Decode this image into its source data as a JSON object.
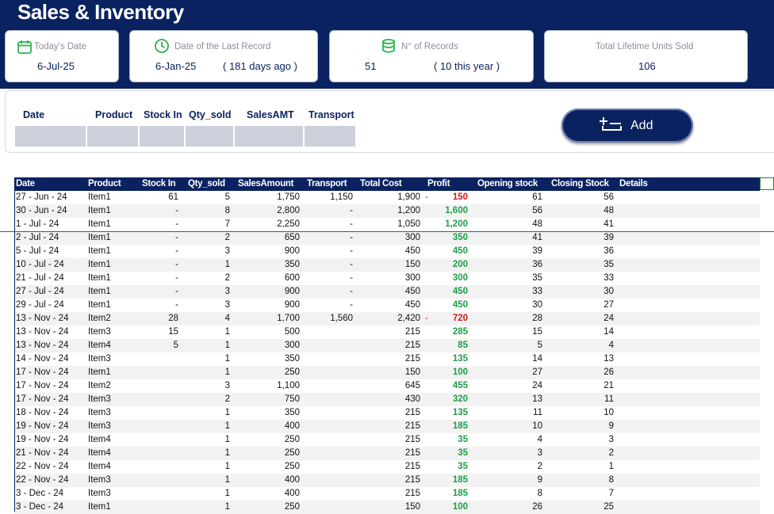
{
  "app": {
    "title": "Sales & Inventory"
  },
  "cards": {
    "today": {
      "label": "Today's Date",
      "value": "6-Jul-25"
    },
    "last": {
      "label": "Date of the Last Record",
      "value": "6-Jan-25",
      "sub": "( 181 days ago )"
    },
    "records": {
      "label": "N° of  Records",
      "value": "51",
      "sub": "( 10 this year )"
    },
    "units": {
      "label": "Total Lifetime Units Sold",
      "value": "106"
    }
  },
  "form": {
    "headers": [
      "Date",
      "Product",
      "Stock In",
      "Qty_sold",
      "SalesAMT",
      "Transport"
    ],
    "add_label": "Add"
  },
  "table": {
    "headers": [
      "Date",
      "Product",
      "Stock In",
      "Qty_sold",
      "SalesAmount",
      "Transport",
      "Total Cost",
      "Profit",
      "Opening stock",
      "Closing Stock",
      "Details"
    ],
    "rows": [
      {
        "date": "27 - Jun - 24",
        "product": "Item1",
        "stock_in": "61",
        "qty": "5",
        "sales": "1,750",
        "transport": "1,150",
        "cost": "1,900",
        "neg": "-",
        "profit": "150",
        "profit_sign": "neg",
        "open": "61",
        "close": "56"
      },
      {
        "date": "30 - Jun - 24",
        "product": "Item1",
        "stock_in": "-",
        "qty": "8",
        "sales": "2,800",
        "transport": "-",
        "cost": "1,200",
        "neg": "",
        "profit": "1,600",
        "profit_sign": "pos",
        "open": "56",
        "close": "48"
      },
      {
        "date": "1 - Jul - 24",
        "product": "Item1",
        "stock_in": "-",
        "qty": "7",
        "sales": "2,250",
        "transport": "-",
        "cost": "1,050",
        "neg": "",
        "profit": "1,200",
        "profit_sign": "pos",
        "open": "48",
        "close": "41"
      },
      {
        "date": "2 - Jul - 24",
        "product": "Item1",
        "stock_in": "-",
        "qty": "2",
        "sales": "650",
        "transport": "-",
        "cost": "300",
        "neg": "",
        "profit": "350",
        "profit_sign": "pos",
        "open": "41",
        "close": "39"
      },
      {
        "date": "5 - Jul - 24",
        "product": "Item1",
        "stock_in": "-",
        "qty": "3",
        "sales": "900",
        "transport": "-",
        "cost": "450",
        "neg": "",
        "profit": "450",
        "profit_sign": "pos",
        "open": "39",
        "close": "36"
      },
      {
        "date": "10 - Jul - 24",
        "product": "Item1",
        "stock_in": "-",
        "qty": "1",
        "sales": "350",
        "transport": "-",
        "cost": "150",
        "neg": "",
        "profit": "200",
        "profit_sign": "pos",
        "open": "36",
        "close": "35"
      },
      {
        "date": "21 - Jul - 24",
        "product": "Item1",
        "stock_in": "-",
        "qty": "2",
        "sales": "600",
        "transport": "-",
        "cost": "300",
        "neg": "",
        "profit": "300",
        "profit_sign": "pos",
        "open": "35",
        "close": "33"
      },
      {
        "date": "27 - Jul - 24",
        "product": "Item1",
        "stock_in": "-",
        "qty": "3",
        "sales": "900",
        "transport": "-",
        "cost": "450",
        "neg": "",
        "profit": "450",
        "profit_sign": "pos",
        "open": "33",
        "close": "30"
      },
      {
        "date": "29 - Jul - 24",
        "product": "Item1",
        "stock_in": "-",
        "qty": "3",
        "sales": "900",
        "transport": "-",
        "cost": "450",
        "neg": "",
        "profit": "450",
        "profit_sign": "pos",
        "open": "30",
        "close": "27"
      },
      {
        "date": "13 - Nov - 24",
        "product": "Item2",
        "stock_in": "28",
        "qty": "4",
        "sales": "1,700",
        "transport": "1,560",
        "cost": "2,420",
        "neg": "-",
        "profit": "720",
        "profit_sign": "neg",
        "open": "28",
        "close": "24"
      },
      {
        "date": "13 - Nov - 24",
        "product": "Item3",
        "stock_in": "15",
        "qty": "1",
        "sales": "500",
        "transport": "",
        "cost": "215",
        "neg": "",
        "profit": "285",
        "profit_sign": "pos",
        "open": "15",
        "close": "14"
      },
      {
        "date": "13 - Nov - 24",
        "product": "Item4",
        "stock_in": "5",
        "qty": "1",
        "sales": "300",
        "transport": "",
        "cost": "215",
        "neg": "",
        "profit": "85",
        "profit_sign": "pos",
        "open": "5",
        "close": "4"
      },
      {
        "date": "14 - Nov - 24",
        "product": "Item3",
        "stock_in": "",
        "qty": "1",
        "sales": "350",
        "transport": "",
        "cost": "215",
        "neg": "",
        "profit": "135",
        "profit_sign": "pos",
        "open": "14",
        "close": "13"
      },
      {
        "date": "17 - Nov - 24",
        "product": "Item1",
        "stock_in": "",
        "qty": "1",
        "sales": "250",
        "transport": "",
        "cost": "150",
        "neg": "",
        "profit": "100",
        "profit_sign": "pos",
        "open": "27",
        "close": "26"
      },
      {
        "date": "17 - Nov - 24",
        "product": "Item2",
        "stock_in": "",
        "qty": "3",
        "sales": "1,100",
        "transport": "",
        "cost": "645",
        "neg": "",
        "profit": "455",
        "profit_sign": "pos",
        "open": "24",
        "close": "21"
      },
      {
        "date": "17 - Nov - 24",
        "product": "Item3",
        "stock_in": "",
        "qty": "2",
        "sales": "750",
        "transport": "",
        "cost": "430",
        "neg": "",
        "profit": "320",
        "profit_sign": "pos",
        "open": "13",
        "close": "11"
      },
      {
        "date": "18 - Nov - 24",
        "product": "Item3",
        "stock_in": "",
        "qty": "1",
        "sales": "350",
        "transport": "",
        "cost": "215",
        "neg": "",
        "profit": "135",
        "profit_sign": "pos",
        "open": "11",
        "close": "10"
      },
      {
        "date": "19 - Nov - 24",
        "product": "Item3",
        "stock_in": "",
        "qty": "1",
        "sales": "400",
        "transport": "",
        "cost": "215",
        "neg": "",
        "profit": "185",
        "profit_sign": "pos",
        "open": "10",
        "close": "9"
      },
      {
        "date": "19 - Nov - 24",
        "product": "Item4",
        "stock_in": "",
        "qty": "1",
        "sales": "250",
        "transport": "",
        "cost": "215",
        "neg": "",
        "profit": "35",
        "profit_sign": "pos",
        "open": "4",
        "close": "3"
      },
      {
        "date": "21 - Nov - 24",
        "product": "Item4",
        "stock_in": "",
        "qty": "1",
        "sales": "250",
        "transport": "",
        "cost": "215",
        "neg": "",
        "profit": "35",
        "profit_sign": "pos",
        "open": "3",
        "close": "2"
      },
      {
        "date": "22 - Nov - 24",
        "product": "Item4",
        "stock_in": "",
        "qty": "1",
        "sales": "250",
        "transport": "",
        "cost": "215",
        "neg": "",
        "profit": "35",
        "profit_sign": "pos",
        "open": "2",
        "close": "1"
      },
      {
        "date": "22 - Nov - 24",
        "product": "Item3",
        "stock_in": "",
        "qty": "1",
        "sales": "400",
        "transport": "",
        "cost": "215",
        "neg": "",
        "profit": "185",
        "profit_sign": "pos",
        "open": "9",
        "close": "8"
      },
      {
        "date": "3 - Dec - 24",
        "product": "Item3",
        "stock_in": "",
        "qty": "1",
        "sales": "400",
        "transport": "",
        "cost": "215",
        "neg": "",
        "profit": "185",
        "profit_sign": "pos",
        "open": "8",
        "close": "7"
      },
      {
        "date": "3 - Dec - 24",
        "product": "Item1",
        "stock_in": "",
        "qty": "1",
        "sales": "250",
        "transport": "",
        "cost": "150",
        "neg": "",
        "profit": "100",
        "profit_sign": "pos",
        "open": "26",
        "close": "25"
      }
    ]
  },
  "colors": {
    "brand": "#0a2260",
    "positive": "#1e9e48",
    "negative": "#d11a1a",
    "card_icon": "#2bb24c"
  },
  "icons": {
    "calendar": "calendar-icon",
    "clock": "clock-icon",
    "database": "database-icon",
    "add": "add-row-icon"
  }
}
